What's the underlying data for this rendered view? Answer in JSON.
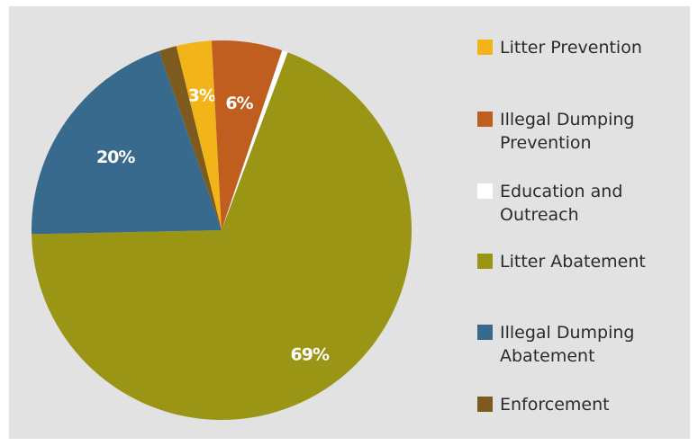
{
  "chart_data": {
    "type": "pie",
    "title": "",
    "slices": [
      {
        "name": "Litter Prevention",
        "value": 3,
        "label": "3%",
        "color": "#f2b418"
      },
      {
        "name": "Illegal Dumping Prevention",
        "value": 6,
        "label": "6%",
        "color": "#bf5e1e"
      },
      {
        "name": "Education and Outreach",
        "value": 0.5,
        "label": "",
        "color": "#ffffff"
      },
      {
        "name": "Litter Abatement",
        "value": 69,
        "label": "69%",
        "color": "#9b9516"
      },
      {
        "name": "Illegal Dumping Abatement",
        "value": 20,
        "label": "20%",
        "color": "#386a8e"
      },
      {
        "name": "Enforcement",
        "value": 1.5,
        "label": "",
        "color": "#7d5a1e"
      }
    ],
    "legend": {
      "position": "right",
      "items": [
        {
          "label": "Litter Prevention",
          "color": "#f2b418"
        },
        {
          "label": "Illegal Dumping\nPrevention",
          "color": "#bf5e1e"
        },
        {
          "label": "Education and\nOutreach",
          "color": "#ffffff"
        },
        {
          "label": "Litter Abatement",
          "color": "#9b9516"
        },
        {
          "label": "Illegal Dumping\nAbatement",
          "color": "#386a8e"
        },
        {
          "label": "Enforcement",
          "color": "#7d5a1e"
        }
      ]
    }
  }
}
